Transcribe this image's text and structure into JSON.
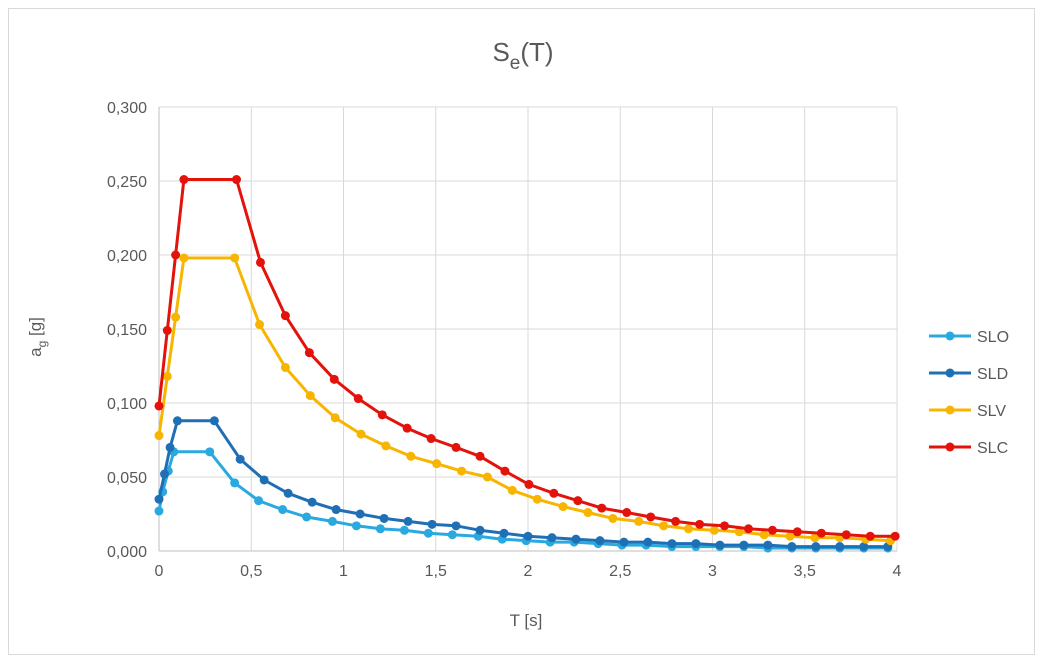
{
  "chart_data": {
    "type": "line",
    "title": "S",
    "title_subscript": "e",
    "title_suffix": "(T)",
    "xlabel": "T [s]",
    "ylabel_main": "a",
    "ylabel_subscript": "g",
    "ylabel_suffix": " [g]",
    "xlim": [
      0,
      4
    ],
    "ylim": [
      0,
      0.3
    ],
    "x_ticks": [
      0,
      0.5,
      1,
      1.5,
      2,
      2.5,
      3,
      3.5,
      4
    ],
    "x_tick_labels": [
      "0",
      "0,5",
      "1",
      "1,5",
      "2",
      "2,5",
      "3",
      "3,5",
      "4"
    ],
    "y_ticks": [
      0,
      0.05,
      0.1,
      0.15,
      0.2,
      0.25,
      0.3
    ],
    "y_tick_labels": [
      "0,000",
      "0,050",
      "0,100",
      "0,150",
      "0,200",
      "0,250",
      "0,300"
    ],
    "grid": true,
    "legend_position": "right",
    "series": [
      {
        "name": "SLO",
        "color": "#29a9e0",
        "points": [
          [
            0,
            0.027
          ],
          [
            0.02,
            0.04
          ],
          [
            0.05,
            0.054
          ],
          [
            0.08,
            0.067
          ],
          [
            0.275,
            0.067
          ],
          [
            0.41,
            0.046
          ],
          [
            0.54,
            0.034
          ],
          [
            0.67,
            0.028
          ],
          [
            0.8,
            0.023
          ],
          [
            0.94,
            0.02
          ],
          [
            1.07,
            0.017
          ],
          [
            1.2,
            0.015
          ],
          [
            1.33,
            0.014
          ],
          [
            1.46,
            0.012
          ],
          [
            1.59,
            0.011
          ],
          [
            1.73,
            0.01
          ],
          [
            1.86,
            0.008
          ],
          [
            1.99,
            0.007
          ],
          [
            2.12,
            0.006
          ],
          [
            2.25,
            0.006
          ],
          [
            2.38,
            0.005
          ],
          [
            2.51,
            0.004
          ],
          [
            2.64,
            0.004
          ],
          [
            2.78,
            0.003
          ],
          [
            2.91,
            0.003
          ],
          [
            3.04,
            0.003
          ],
          [
            3.17,
            0.003
          ],
          [
            3.3,
            0.002
          ],
          [
            3.43,
            0.002
          ],
          [
            3.56,
            0.002
          ],
          [
            3.69,
            0.002
          ],
          [
            3.82,
            0.002
          ],
          [
            3.95,
            0.002
          ]
        ]
      },
      {
        "name": "SLD",
        "color": "#1f6fb5",
        "points": [
          [
            0,
            0.035
          ],
          [
            0.03,
            0.052
          ],
          [
            0.06,
            0.07
          ],
          [
            0.1,
            0.088
          ],
          [
            0.3,
            0.088
          ],
          [
            0.44,
            0.062
          ],
          [
            0.57,
            0.048
          ],
          [
            0.7,
            0.039
          ],
          [
            0.83,
            0.033
          ],
          [
            0.96,
            0.028
          ],
          [
            1.09,
            0.025
          ],
          [
            1.22,
            0.022
          ],
          [
            1.35,
            0.02
          ],
          [
            1.48,
            0.018
          ],
          [
            1.61,
            0.017
          ],
          [
            1.74,
            0.014
          ],
          [
            1.87,
            0.012
          ],
          [
            2.0,
            0.01
          ],
          [
            2.13,
            0.009
          ],
          [
            2.26,
            0.008
          ],
          [
            2.39,
            0.007
          ],
          [
            2.52,
            0.006
          ],
          [
            2.65,
            0.006
          ],
          [
            2.78,
            0.005
          ],
          [
            2.91,
            0.005
          ],
          [
            3.04,
            0.004
          ],
          [
            3.17,
            0.004
          ],
          [
            3.3,
            0.004
          ],
          [
            3.43,
            0.003
          ],
          [
            3.56,
            0.003
          ],
          [
            3.69,
            0.003
          ],
          [
            3.82,
            0.003
          ],
          [
            3.95,
            0.003
          ]
        ]
      },
      {
        "name": "SLV",
        "color": "#f7b500",
        "points": [
          [
            0,
            0.078
          ],
          [
            0.045,
            0.118
          ],
          [
            0.09,
            0.158
          ],
          [
            0.135,
            0.198
          ],
          [
            0.41,
            0.198
          ],
          [
            0.545,
            0.153
          ],
          [
            0.685,
            0.124
          ],
          [
            0.82,
            0.105
          ],
          [
            0.955,
            0.09
          ],
          [
            1.095,
            0.079
          ],
          [
            1.23,
            0.071
          ],
          [
            1.365,
            0.064
          ],
          [
            1.505,
            0.059
          ],
          [
            1.64,
            0.054
          ],
          [
            1.78,
            0.05
          ],
          [
            1.915,
            0.041
          ],
          [
            2.05,
            0.035
          ],
          [
            2.19,
            0.03
          ],
          [
            2.325,
            0.026
          ],
          [
            2.46,
            0.022
          ],
          [
            2.6,
            0.02
          ],
          [
            2.735,
            0.017
          ],
          [
            2.87,
            0.015
          ],
          [
            3.01,
            0.014
          ],
          [
            3.145,
            0.013
          ],
          [
            3.28,
            0.011
          ],
          [
            3.42,
            0.01
          ],
          [
            3.555,
            0.009
          ],
          [
            3.69,
            0.009
          ],
          [
            3.83,
            0.008
          ],
          [
            3.965,
            0.007
          ]
        ]
      },
      {
        "name": "SLC",
        "color": "#e3120b",
        "points": [
          [
            0,
            0.098
          ],
          [
            0.045,
            0.149
          ],
          [
            0.09,
            0.2
          ],
          [
            0.135,
            0.251
          ],
          [
            0.42,
            0.251
          ],
          [
            0.55,
            0.195
          ],
          [
            0.685,
            0.159
          ],
          [
            0.815,
            0.134
          ],
          [
            0.95,
            0.116
          ],
          [
            1.08,
            0.103
          ],
          [
            1.21,
            0.092
          ],
          [
            1.345,
            0.083
          ],
          [
            1.475,
            0.076
          ],
          [
            1.61,
            0.07
          ],
          [
            1.74,
            0.064
          ],
          [
            1.875,
            0.054
          ],
          [
            2.005,
            0.045
          ],
          [
            2.14,
            0.039
          ],
          [
            2.27,
            0.034
          ],
          [
            2.4,
            0.029
          ],
          [
            2.535,
            0.026
          ],
          [
            2.665,
            0.023
          ],
          [
            2.8,
            0.02
          ],
          [
            2.93,
            0.018
          ],
          [
            3.065,
            0.017
          ],
          [
            3.195,
            0.015
          ],
          [
            3.325,
            0.014
          ],
          [
            3.46,
            0.013
          ],
          [
            3.59,
            0.012
          ],
          [
            3.725,
            0.011
          ],
          [
            3.855,
            0.01
          ],
          [
            3.99,
            0.01
          ]
        ]
      }
    ]
  }
}
